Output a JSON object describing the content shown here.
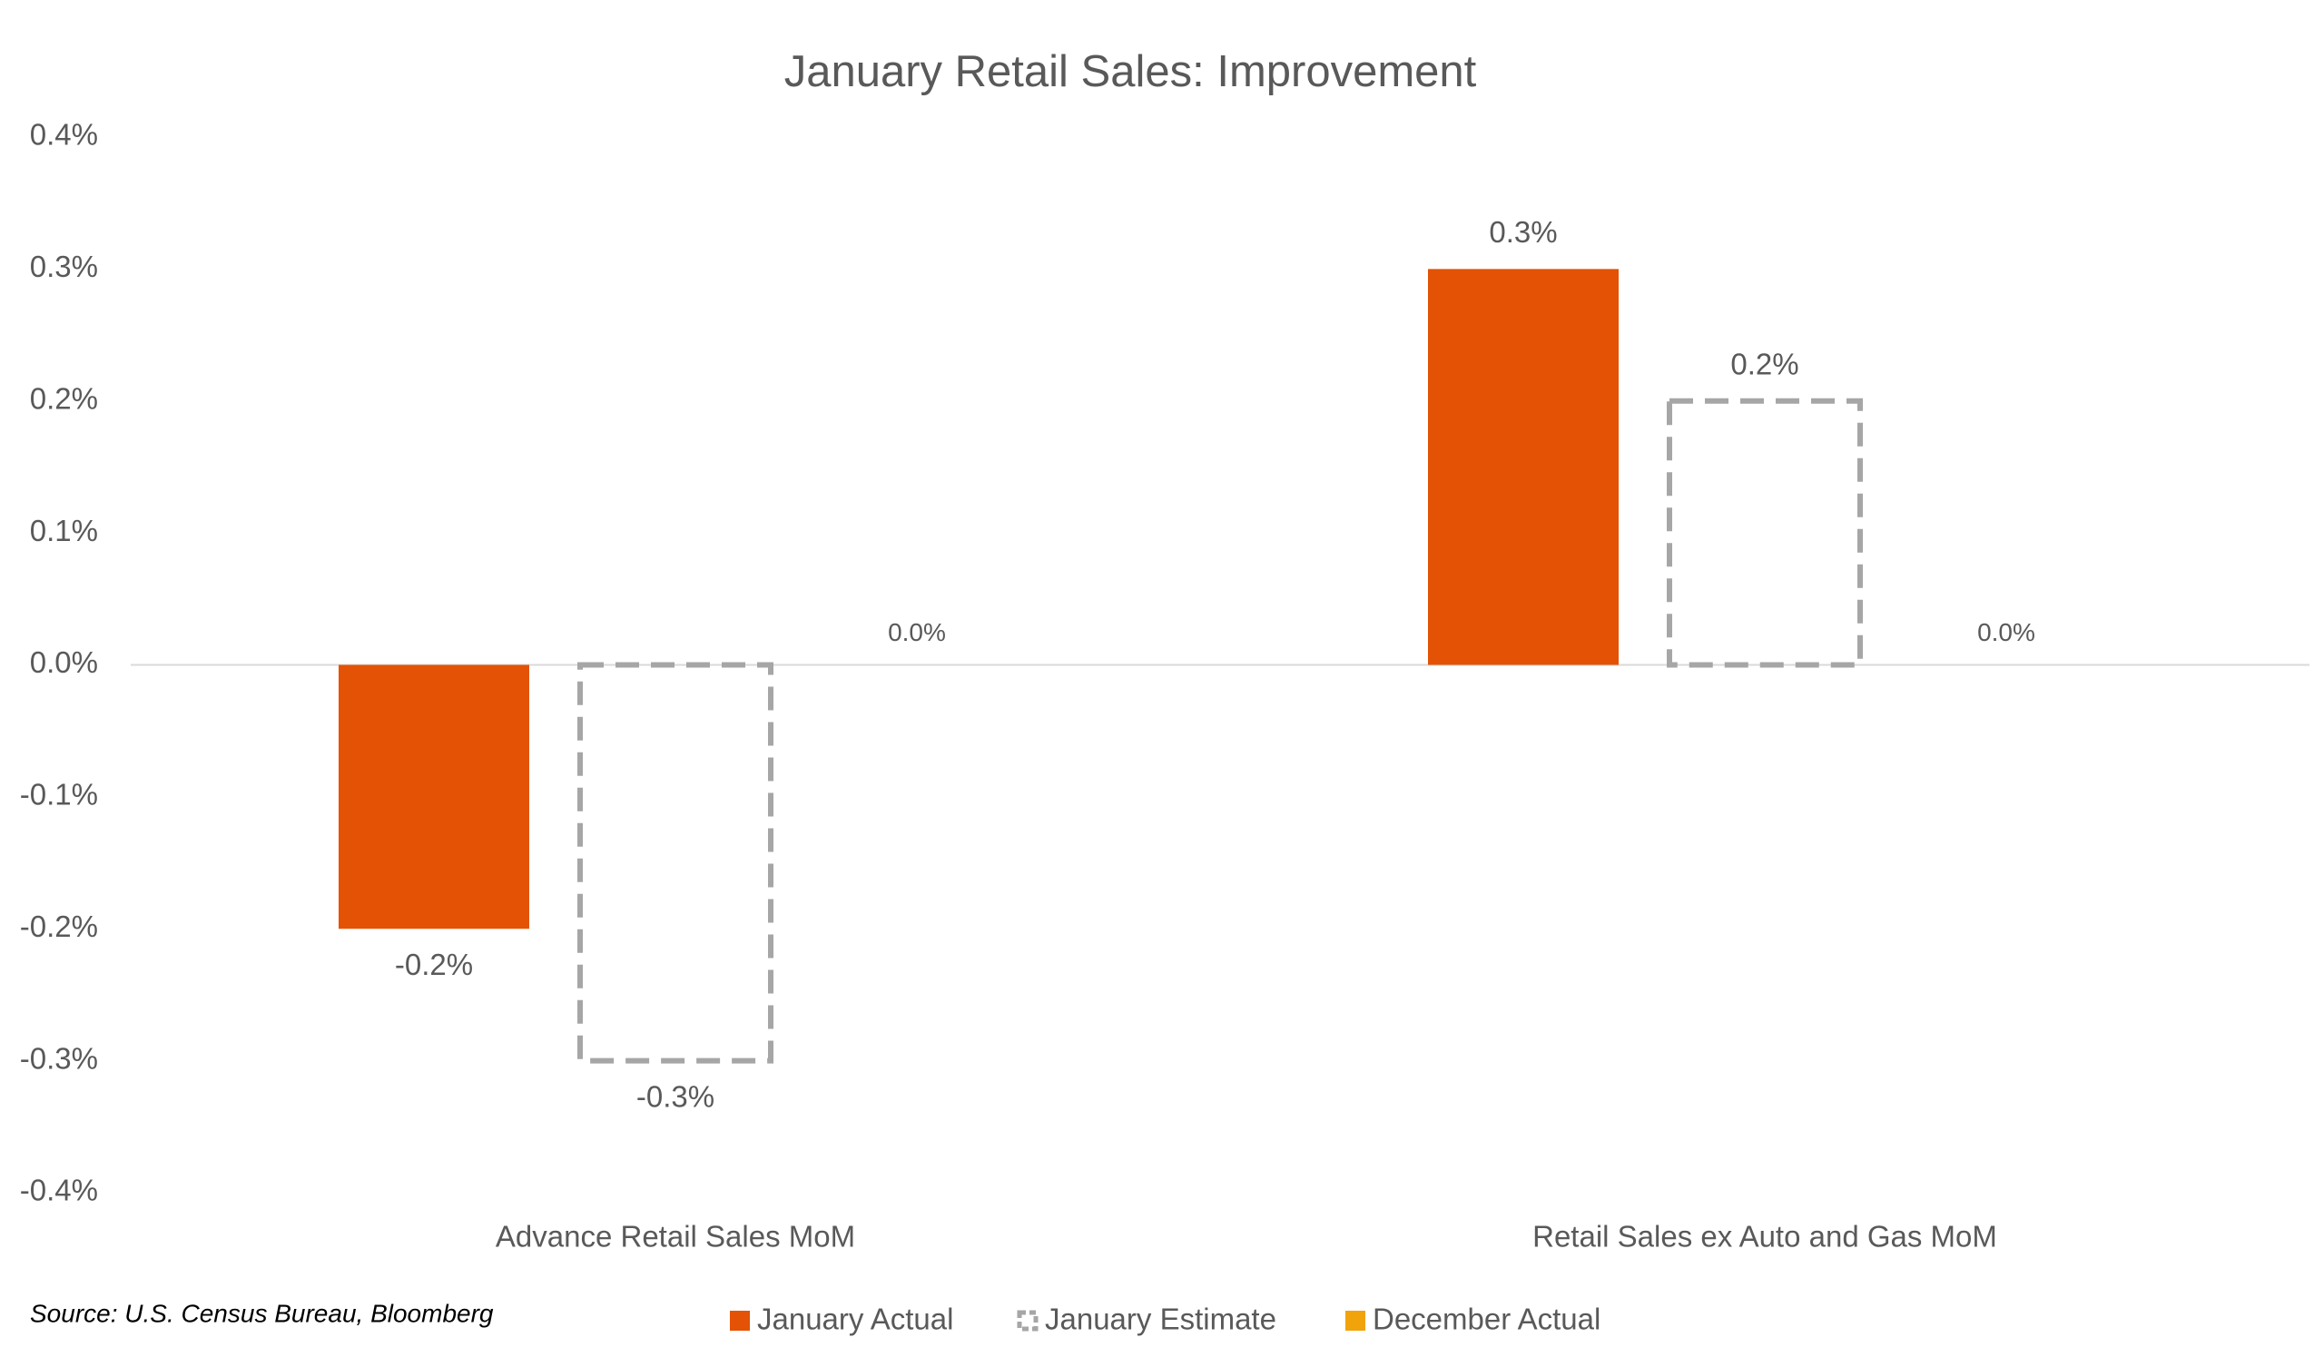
{
  "chart_data": {
    "type": "bar",
    "title": "January Retail Sales: Improvement",
    "categories": [
      "Advance Retail Sales MoM",
      "Retail Sales ex Auto and Gas MoM"
    ],
    "series": [
      {
        "name": "January Actual",
        "color": "#e35205",
        "values": [
          -0.2,
          0.3
        ],
        "value_labels": [
          "-0.2%",
          "0.3%"
        ]
      },
      {
        "name": "January Estimate",
        "color": "#a6a6a6",
        "line_style": "dashed",
        "values": [
          -0.3,
          0.2
        ],
        "value_labels": [
          "-0.3%",
          "0.2%"
        ]
      },
      {
        "name": "December Actual",
        "color": "#f0a30a",
        "values": [
          0.0,
          0.0
        ],
        "value_labels": [
          "0.0%",
          "0.0%"
        ]
      }
    ],
    "ylim": [
      -0.4,
      0.4
    ],
    "yticks": [
      {
        "value": -0.4,
        "label": "-0.4%"
      },
      {
        "value": -0.3,
        "label": "-0.3%"
      },
      {
        "value": -0.2,
        "label": "-0.2%"
      },
      {
        "value": -0.1,
        "label": "-0.1%"
      },
      {
        "value": 0.0,
        "label": "0.0%"
      },
      {
        "value": 0.1,
        "label": "0.1%"
      },
      {
        "value": 0.2,
        "label": "0.2%"
      },
      {
        "value": 0.3,
        "label": "0.3%"
      },
      {
        "value": 0.4,
        "label": "0.4%"
      }
    ],
    "grid": false,
    "source": "Source: U.S. Census Bureau, Bloomberg"
  }
}
